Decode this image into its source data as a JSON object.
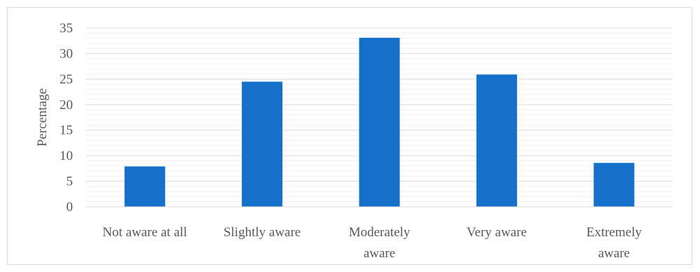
{
  "chart_data": {
    "type": "bar",
    "categories": [
      [
        "Not aware at all"
      ],
      [
        "Slightly aware"
      ],
      [
        "Moderately",
        "aware"
      ],
      [
        "Very aware"
      ],
      [
        "Extremely",
        "aware"
      ]
    ],
    "values": [
      7.9,
      24.5,
      33.1,
      25.9,
      8.6
    ],
    "title": "",
    "xlabel": "",
    "ylabel": "Percentage",
    "ylim": [
      0,
      35
    ],
    "yticks": [
      0,
      5,
      10,
      15,
      20,
      25,
      30,
      35
    ],
    "minor_step": 1,
    "grid": true,
    "legend": "none",
    "colors": {
      "bar": "#1570c9",
      "major_grid": "#d9d9d9",
      "minor_grid": "#efefef",
      "axis_line": "#d9d9d9"
    }
  }
}
